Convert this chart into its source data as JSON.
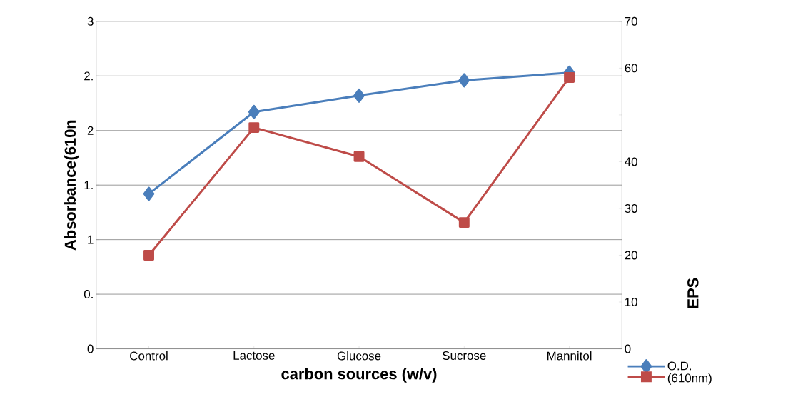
{
  "chart_data": {
    "type": "line",
    "xlabel": "carbon sources (w/v)",
    "ylabel": "Absorbance(610n",
    "y2label": "EPS",
    "categories": [
      "Control",
      "Lactose",
      "Glucose",
      "Sucrose",
      "Mannitol"
    ],
    "series": [
      {
        "name": "O.D. (610nm)",
        "color": "#4a7ebb",
        "marker": "diamond",
        "values": [
          1.42,
          2.17,
          2.32,
          2.46,
          2.53
        ]
      },
      {
        "color": "#be4b48",
        "marker": "square",
        "axis": "y2",
        "values": [
          20,
          47.3,
          41.1,
          27,
          58
        ]
      }
    ],
    "ylim": [
      0,
      3
    ],
    "yticks": [
      0,
      {
        "value": 0.5,
        "label": "0."
      },
      1,
      {
        "value": 1.5,
        "label": "1."
      },
      2,
      {
        "value": 2.5,
        "label": "2."
      },
      3
    ],
    "y2lim": [
      0,
      70
    ],
    "y2ticks": [
      0,
      10,
      20,
      30,
      40,
      {
        "value": 50,
        "label": null
      },
      60,
      70
    ],
    "grid": "y",
    "legend": "bottom right"
  }
}
